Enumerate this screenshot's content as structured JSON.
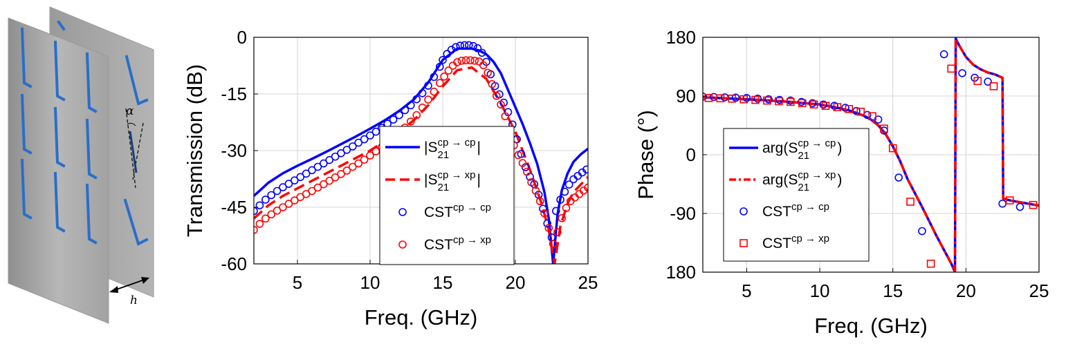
{
  "figure": {
    "illustration": {
      "alpha_label": "α",
      "h_label": "h",
      "sheet_color": "#a9a9a9",
      "element_color": "#2a6ec9"
    },
    "colors": {
      "blue": "#0000ff",
      "red": "#ff0000"
    }
  },
  "chart_data": [
    {
      "type": "line",
      "title": "",
      "xlabel": "Freq. (GHz)",
      "ylabel": "Transmission (dB)",
      "xlim": [
        2,
        25
      ],
      "ylim": [
        -60,
        0
      ],
      "xticks": [
        5,
        10,
        15,
        20,
        25
      ],
      "xtick_labels": [
        "5",
        "10",
        "15",
        "20",
        "25"
      ],
      "yticks": [
        0,
        -15,
        -30,
        -45,
        -60
      ],
      "ytick_labels": [
        "0",
        "-15",
        "-30",
        "-45",
        "-60"
      ],
      "grid": true,
      "legend_position": "center",
      "series": [
        {
          "name": "|S21 cp→cp|",
          "legend": {
            "pre": "|S",
            "sup": "cp → cp",
            "sub": "21",
            "post": "|"
          },
          "style": "solid",
          "color": "#0000ff",
          "x": [
            2,
            3,
            4,
            5,
            6,
            7,
            8,
            9,
            10,
            11,
            12,
            13,
            14,
            15,
            16,
            17,
            17.5,
            18,
            18.5,
            19,
            19.5,
            20,
            20.5,
            21,
            21.5,
            22,
            22.3,
            22.6,
            22.9,
            23.2,
            23.6,
            24,
            24.5,
            25
          ],
          "y": [
            -42,
            -38.5,
            -36,
            -34,
            -32.2,
            -30.3,
            -28.3,
            -26.3,
            -24.2,
            -22,
            -19.5,
            -16.5,
            -12,
            -6,
            -3,
            -3,
            -3.5,
            -4.5,
            -6.5,
            -9.5,
            -14,
            -18.5,
            -23,
            -28,
            -33.5,
            -41,
            -48,
            -60,
            -47,
            -40.5,
            -36,
            -33,
            -31,
            -29.5
          ]
        },
        {
          "name": "|S21 cp→xp|",
          "legend": {
            "pre": "|S",
            "sup": "cp → xp",
            "sub": "21",
            "post": "|"
          },
          "style": "dashed",
          "color": "#ff0000",
          "x": [
            2,
            3,
            4,
            5,
            6,
            7,
            8,
            9,
            10,
            11,
            12,
            13,
            14,
            15,
            16,
            17,
            18,
            19,
            20,
            21,
            21.8,
            22.3,
            22.7,
            23.1,
            23.6,
            24,
            24.5,
            25
          ],
          "y": [
            -48,
            -44.5,
            -42,
            -40,
            -38,
            -36,
            -34,
            -32,
            -30,
            -27.5,
            -25,
            -22,
            -18,
            -13,
            -8.7,
            -8,
            -11,
            -17.5,
            -25,
            -35,
            -44,
            -51,
            -60,
            -50,
            -44,
            -41,
            -39,
            -37
          ]
        },
        {
          "name": "CST cp→cp",
          "legend": {
            "pre": "CST",
            "sup": "cp → cp",
            "sub": "",
            "post": ""
          },
          "style": "circle-markers",
          "color": "#0000ff",
          "x": [
            2,
            2.4,
            2.8,
            3.2,
            3.6,
            4,
            4.4,
            4.8,
            5.2,
            5.6,
            6,
            6.4,
            6.8,
            7.2,
            7.6,
            8,
            8.4,
            8.8,
            9.2,
            9.6,
            10,
            10.4,
            10.8,
            11.2,
            11.6,
            12,
            12.4,
            12.8,
            13.2,
            13.6,
            14,
            14.4,
            14.8,
            15,
            15.3,
            15.6,
            15.9,
            16.2,
            16.5,
            16.8,
            17.1,
            17.4,
            17.7,
            18,
            18.3,
            18.6,
            18.9,
            19.2,
            19.5,
            19.8,
            20.1,
            20.4,
            20.7,
            21,
            21.3,
            21.6,
            21.9,
            22.2,
            22.5,
            22.8,
            23.1,
            23.4,
            23.7,
            24,
            24.3,
            24.6,
            24.9
          ],
          "y": [
            -46,
            -44.5,
            -43,
            -41.8,
            -40.7,
            -39.7,
            -38.8,
            -37.9,
            -37,
            -36.1,
            -35.2,
            -34.3,
            -33.4,
            -32.5,
            -31.6,
            -30.7,
            -29.8,
            -28.9,
            -27.9,
            -27,
            -26,
            -25,
            -24,
            -22.9,
            -21.8,
            -20.6,
            -19.3,
            -18,
            -16.4,
            -14.8,
            -12.8,
            -10.5,
            -7.8,
            -6,
            -4.4,
            -3.3,
            -2.6,
            -2.2,
            -2.1,
            -2.1,
            -2.3,
            -2.9,
            -4.1,
            -6.5,
            -9.8,
            -12.9,
            -15.1,
            -17.3,
            -19.8,
            -23.1,
            -27,
            -30.9,
            -34.4,
            -36.9,
            -38.9,
            -41.7,
            -45.4,
            -49.3,
            -53,
            -46,
            -43,
            -40.9,
            -39,
            -37.6,
            -36.7,
            -35.8,
            -35
          ]
        },
        {
          "name": "CST cp→xp",
          "legend": {
            "pre": "CST",
            "sup": "cp → xp",
            "sub": "",
            "post": ""
          },
          "style": "circle-markers",
          "color": "#ff0000",
          "x": [
            2,
            2.4,
            2.8,
            3.2,
            3.6,
            4,
            4.4,
            4.8,
            5.2,
            5.6,
            6,
            6.4,
            6.8,
            7.2,
            7.6,
            8,
            8.4,
            8.8,
            9.2,
            9.6,
            10,
            10.4,
            10.8,
            11.2,
            11.6,
            12,
            12.4,
            12.8,
            13.2,
            13.6,
            14,
            14.4,
            14.8,
            15.1,
            15.4,
            15.7,
            16,
            16.3,
            16.6,
            16.9,
            17.2,
            17.5,
            17.8,
            18.1,
            18.4,
            18.7,
            19,
            19.3,
            19.6,
            19.9,
            20.2,
            20.5,
            20.8,
            21.1,
            21.4,
            21.7,
            22,
            22.3,
            22.6,
            22.9,
            23.2,
            23.5,
            23.8,
            24.1,
            24.4,
            24.7,
            25
          ],
          "y": [
            -51,
            -49.4,
            -48,
            -46.9,
            -45.9,
            -45,
            -44.1,
            -43.2,
            -42.3,
            -41.5,
            -40.7,
            -39.8,
            -38.9,
            -38,
            -37.1,
            -36.2,
            -35.3,
            -34.3,
            -33.4,
            -32.4,
            -31.3,
            -30.2,
            -29.1,
            -27.9,
            -26.6,
            -25.3,
            -23.9,
            -22.3,
            -20.6,
            -18.6,
            -16.5,
            -14.4,
            -12.1,
            -10.4,
            -8.8,
            -7.5,
            -6.6,
            -6.2,
            -6.1,
            -6.1,
            -6.2,
            -6.4,
            -7.4,
            -9.4,
            -12.4,
            -15.5,
            -17.8,
            -20.9,
            -25,
            -28.6,
            -31.2,
            -33.3,
            -35.6,
            -38.4,
            -40.6,
            -43.4,
            -46.6,
            -50.5,
            -54.7,
            -51.6,
            -47.9,
            -45.2,
            -43.4,
            -42.4,
            -41.5,
            -40.6,
            -39.8
          ]
        }
      ]
    },
    {
      "type": "line",
      "title": "",
      "xlabel": "Freq. (GHz)",
      "ylabel": "Phase (°)",
      "xlim": [
        2,
        25
      ],
      "ylim": [
        -180,
        180
      ],
      "xticks": [
        5,
        10,
        15,
        20,
        25
      ],
      "xtick_labels": [
        "5",
        "10",
        "15",
        "20",
        "25"
      ],
      "yticks": [
        180,
        90,
        0,
        -90,
        -180
      ],
      "ytick_labels": [
        "180",
        "90",
        "0",
        "-90",
        "180"
      ],
      "grid": true,
      "legend_position": "lower-left",
      "series": [
        {
          "name": "arg(S21 cp→cp)",
          "legend": {
            "pre": "arg(S",
            "sup": "cp → cp",
            "sub": "21",
            "post": ")"
          },
          "style": "solid",
          "color": "#0000ff",
          "x": [
            2,
            4,
            6,
            8,
            10,
            11,
            12,
            13,
            13.5,
            14,
            14.5,
            15,
            15.5,
            16,
            17,
            18,
            19,
            19.25,
            19.3,
            19.5,
            20,
            20.5,
            21,
            21.5,
            22,
            22.5,
            22.55,
            23,
            24,
            25
          ],
          "y": [
            88,
            86,
            84,
            81,
            77,
            73,
            68,
            60,
            54,
            45,
            32,
            13,
            -10,
            -37,
            -80,
            -125,
            -167,
            -180,
            178,
            169,
            150,
            138,
            131,
            126,
            123,
            118,
            -67,
            -70,
            -74,
            -78
          ]
        },
        {
          "name": "arg(S21 cp→xp)",
          "legend": {
            "pre": "arg(S",
            "sup": "cp → xp",
            "sub": "21",
            "post": ")"
          },
          "style": "dash-dot",
          "color": "#ff0000",
          "x": [
            2,
            4,
            6,
            8,
            10,
            11,
            12,
            13,
            13.5,
            14,
            14.5,
            15,
            15.5,
            16,
            17,
            18,
            19,
            19.25,
            19.3,
            19.5,
            20,
            20.5,
            21,
            21.5,
            22,
            22.5,
            22.55,
            23,
            24,
            25
          ],
          "y": [
            88,
            86,
            84,
            81,
            77,
            73,
            68,
            60,
            54,
            45,
            32,
            13,
            -10,
            -37,
            -80,
            -125,
            -167,
            -180,
            178,
            169,
            150,
            138,
            131,
            126,
            123,
            118,
            -67,
            -70,
            -74,
            -78
          ]
        },
        {
          "name": "CST cp→cp",
          "legend": {
            "pre": "CST",
            "sup": "cp → cp",
            "sub": "",
            "post": ""
          },
          "style": "circle-markers",
          "color": "#0000ff",
          "x": [
            2,
            2.75,
            3.5,
            4.25,
            5,
            5.75,
            6.5,
            7.25,
            8,
            8.75,
            9.5,
            10.25,
            11,
            11.75,
            12.5,
            13.25,
            14,
            14.4,
            15.4,
            17,
            18.5,
            19.75,
            20.6,
            21.5,
            22.5,
            23.7
          ],
          "y": [
            89,
            88.5,
            88,
            87.5,
            87,
            86,
            85,
            84,
            83,
            81,
            79,
            77,
            75,
            72,
            67,
            61,
            54,
            37,
            -35,
            -117,
            154,
            125,
            118,
            112,
            -75,
            -80
          ]
        },
        {
          "name": "CST cp→xp",
          "legend": {
            "pre": "CST",
            "sup": "cp → xp",
            "sub": "",
            "post": ""
          },
          "style": "square-markers",
          "color": "#ff0000",
          "x": [
            2.4,
            3.2,
            4,
            4.8,
            5.6,
            6.4,
            7.2,
            8,
            8.8,
            9.6,
            10.4,
            11.2,
            12,
            12.8,
            13.6,
            14.4,
            15,
            16.2,
            17.6,
            19,
            20.8,
            21.9,
            23,
            24.6
          ],
          "y": [
            87,
            86.5,
            86,
            85,
            84,
            83,
            82,
            81,
            79,
            77,
            75,
            73,
            70,
            66,
            59,
            40,
            10,
            -72,
            -167,
            132,
            113,
            105,
            -70,
            -77
          ]
        }
      ]
    }
  ]
}
